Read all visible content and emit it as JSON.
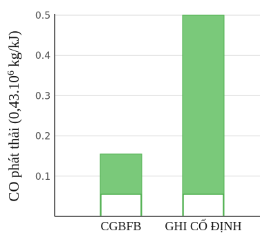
{
  "chart_data": {
    "type": "bar",
    "categories": [
      "CGBFB",
      "GHI CỐ ĐỊNH"
    ],
    "series": [
      {
        "values": [
          0.155,
          0.5
        ]
      }
    ],
    "bar_split_values": [
      0.055,
      0.055
    ],
    "ylabel_main": "CO phát thải (0,43.10",
    "ylabel_sup": "6",
    "ylabel_tail": " kg/kJ)",
    "xlabel": "",
    "yticks": [
      "0.1",
      "0.2",
      "0.3",
      "0.4",
      "0.5"
    ],
    "ylim": [
      0,
      0.5
    ],
    "grid": true,
    "colors": {
      "bar_fill": "#7ac97a",
      "bar_stroke": "#4cae4c",
      "split_fill": "#ffffff",
      "grid": "#d9d9d9",
      "axis": "#666666"
    }
  }
}
